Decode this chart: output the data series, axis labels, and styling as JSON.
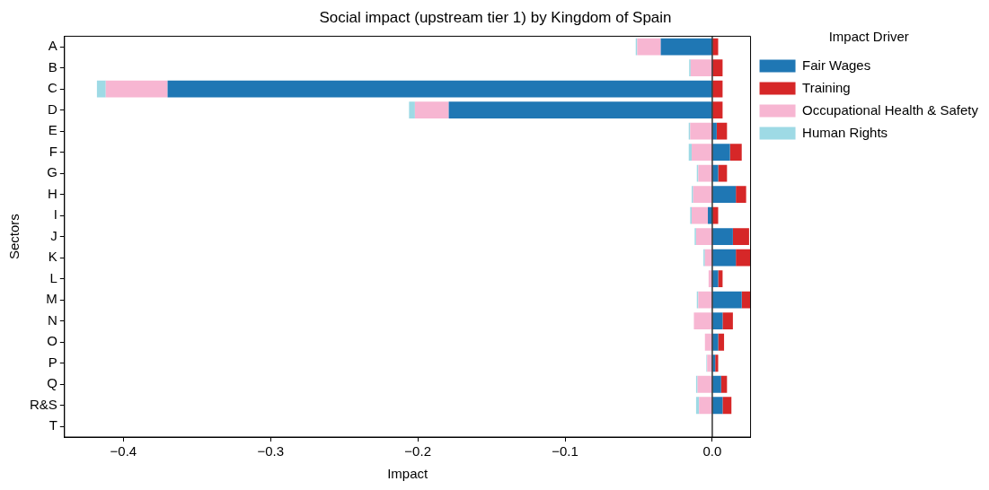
{
  "chart_data": {
    "type": "bar",
    "orientation": "horizontal",
    "stacked": true,
    "title": "Social impact (upstream tier 1) by Kingdom of Spain",
    "xlabel": "Impact",
    "ylabel": "Sectors",
    "legend_title": "Impact Driver",
    "legend": "top right",
    "grid": false,
    "categories": [
      "A",
      "B",
      "C",
      "D",
      "E",
      "F",
      "G",
      "H",
      "I",
      "J",
      "K",
      "L",
      "M",
      "N",
      "O",
      "P",
      "Q",
      "R&S",
      "T"
    ],
    "xlim": [
      -0.44,
      0.026
    ],
    "xticks": [
      {
        "value": -0.4,
        "label": "−0.4"
      },
      {
        "value": -0.3,
        "label": "−0.3"
      },
      {
        "value": -0.2,
        "label": "−0.2"
      },
      {
        "value": -0.1,
        "label": "−0.1"
      },
      {
        "value": 0,
        "label": "0.0"
      }
    ],
    "ref_lines": [
      {
        "axis": "x",
        "value": 0,
        "color": "#000000"
      }
    ],
    "series": [
      {
        "name": "Fair Wages",
        "color": "#1f77b4",
        "values": [
          -0.035,
          0,
          -0.37,
          -0.179,
          0.003,
          0.012,
          0.004,
          0.016,
          -0.003,
          0.014,
          0.016,
          0.004,
          0.02,
          0.007,
          0.004,
          0.002,
          0.006,
          0.007,
          0
        ]
      },
      {
        "name": "Training",
        "color": "#d62728",
        "values": [
          0.004,
          0.007,
          0.007,
          0.007,
          0.007,
          0.008,
          0.006,
          0.007,
          0.004,
          0.011,
          0.01,
          0.003,
          0.006,
          0.007,
          0.004,
          0.002,
          0.004,
          0.006,
          0
        ]
      },
      {
        "name": "Occupational Health & Safety",
        "color": "#f7b6d2",
        "values": [
          -0.016,
          -0.0147,
          -0.042,
          -0.023,
          -0.015,
          -0.014,
          -0.0095,
          -0.013,
          -0.011,
          -0.011,
          -0.005,
          -0.0025,
          -0.0095,
          -0.0125,
          -0.005,
          -0.0035,
          -0.01,
          -0.009,
          0
        ]
      },
      {
        "name": "Human Rights",
        "color": "#9edae5",
        "values": [
          -0.001,
          -0.001,
          -0.006,
          -0.004,
          -0.001,
          -0.002,
          -0.001,
          -0.001,
          -0.001,
          -0.001,
          -0.001,
          0,
          -0.001,
          null,
          0,
          -0.0005,
          -0.001,
          -0.002,
          0
        ]
      }
    ]
  }
}
